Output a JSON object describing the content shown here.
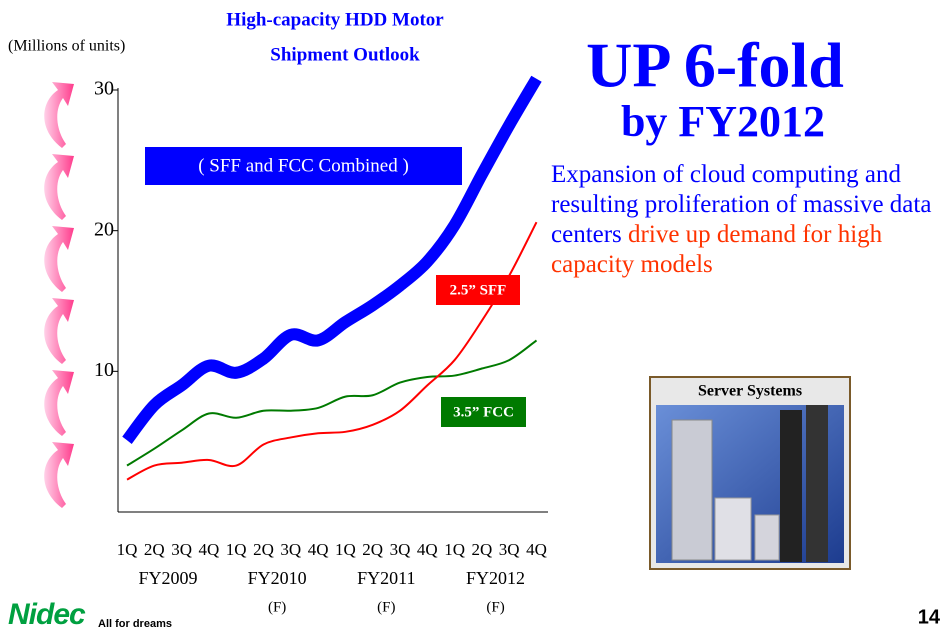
{
  "chart_data": {
    "type": "line",
    "title": [
      "High-capacity HDD Motor",
      "Shipment Outlook"
    ],
    "y_label": "(Millions of units)",
    "categories": [
      "1Q",
      "2Q",
      "3Q",
      "4Q",
      "1Q",
      "2Q",
      "3Q",
      "4Q",
      "1Q",
      "2Q",
      "3Q",
      "4Q",
      "1Q",
      "2Q",
      "3Q",
      "4Q"
    ],
    "fiscal_years": [
      {
        "label": "FY2009"
      },
      {
        "label": "FY2010",
        "note": "(F)"
      },
      {
        "label": "FY2011",
        "note": "(F)"
      },
      {
        "label": "FY2012",
        "note": "(F)"
      }
    ],
    "ylim": [
      0,
      30
    ],
    "yticks": [
      10,
      20,
      30
    ],
    "series": [
      {
        "name": "( SFF and FCC Combined )",
        "color": "#0000ff",
        "width": 12,
        "values": [
          5.1,
          7.6,
          9.0,
          10.4,
          9.9,
          10.9,
          12.6,
          12.2,
          13.5,
          14.7,
          16.1,
          17.8,
          20.4,
          24.0,
          27.5,
          30.8
        ]
      },
      {
        "name": "2.5” SFF",
        "color": "#ff0000",
        "width": 2,
        "values": [
          2.3,
          3.3,
          3.5,
          3.7,
          3.3,
          4.8,
          5.3,
          5.6,
          5.7,
          6.2,
          7.2,
          9.0,
          10.8,
          13.6,
          16.8,
          20.6
        ]
      },
      {
        "name": "3.5” FCC",
        "color": "#007a00",
        "width": 2,
        "values": [
          3.3,
          4.5,
          5.8,
          7.0,
          6.7,
          7.2,
          7.2,
          7.4,
          8.2,
          8.3,
          9.2,
          9.6,
          9.7,
          10.2,
          10.8,
          12.2
        ]
      }
    ]
  },
  "headline": [
    "UP 6-fold",
    "by FY2012"
  ],
  "text_blue": "Expansion of cloud computing and resulting proliferation of massive data centers",
  "text_red": "drive up demand for high capacity models",
  "image_caption": "Server Systems",
  "logo": {
    "name": "Nidec",
    "tagline": "All for dreams"
  },
  "page_number": "14"
}
